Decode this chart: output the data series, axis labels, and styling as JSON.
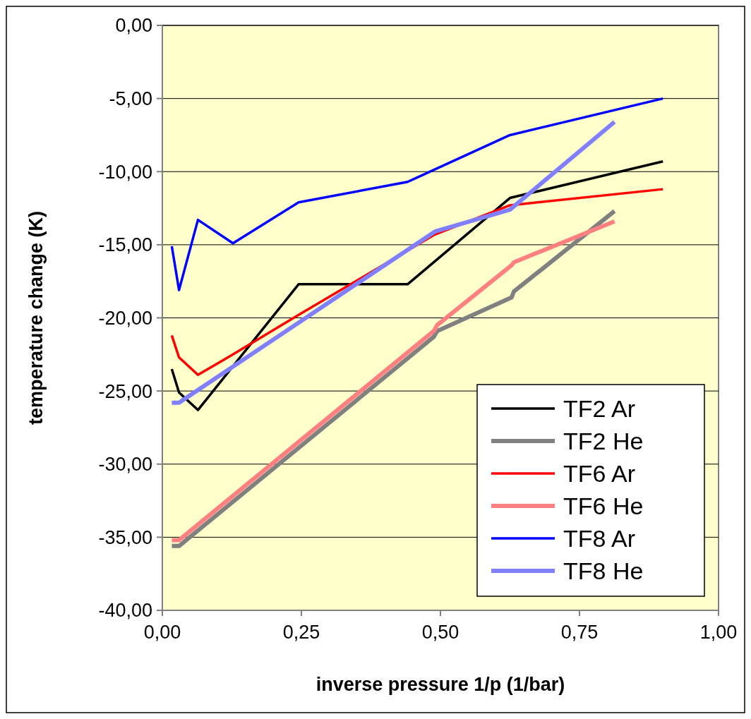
{
  "chart_data": {
    "type": "line",
    "xlabel": "inverse pressure 1/p (1/bar)",
    "ylabel": "temperature change (K)",
    "xlim": [
      0,
      1
    ],
    "ylim": [
      -40,
      0
    ],
    "xticks": [
      {
        "value": 0,
        "label": "0,00"
      },
      {
        "value": 0.25,
        "label": "0,25"
      },
      {
        "value": 0.5,
        "label": "0,50"
      },
      {
        "value": 0.75,
        "label": "0,75"
      },
      {
        "value": 1,
        "label": "1,00"
      }
    ],
    "yticks": [
      {
        "value": -40,
        "label": "-40,00"
      },
      {
        "value": -35,
        "label": "-35,00"
      },
      {
        "value": -30,
        "label": "-30,00"
      },
      {
        "value": -25,
        "label": "-25,00"
      },
      {
        "value": -20,
        "label": "-20,00"
      },
      {
        "value": -15,
        "label": "-15,00"
      },
      {
        "value": -10,
        "label": "-10,00"
      },
      {
        "value": -5,
        "label": "-5,00"
      },
      {
        "value": 0,
        "label": "0,00"
      }
    ],
    "grid": "y",
    "legend": "bottom right",
    "marker": "none",
    "line_style": "solid",
    "series": [
      {
        "name": "TF2 Ar",
        "color": "#000000",
        "x": [
          0.017,
          0.03,
          0.064,
          0.245,
          0.441,
          0.625,
          0.9
        ],
        "values": [
          -23.5,
          -25.1,
          -26.3,
          -17.7,
          -17.7,
          -11.8,
          -9.3
        ]
      },
      {
        "name": "TF2 He",
        "color": "#808080",
        "x": [
          0.017,
          0.03,
          0.488,
          0.494,
          0.628,
          0.632,
          0.813
        ],
        "values": [
          -35.6,
          -35.6,
          -21.3,
          -20.9,
          -18.6,
          -18.2,
          -12.7
        ]
      },
      {
        "name": "TF6 Ar",
        "color": "#ff0000",
        "x": [
          0.017,
          0.03,
          0.064,
          0.127,
          0.245,
          0.49,
          0.625,
          0.9
        ],
        "values": [
          -21.2,
          -22.7,
          -23.9,
          -22.5,
          -19.8,
          -14.3,
          -12.3,
          -11.2
        ]
      },
      {
        "name": "TF6 He",
        "color": "#ff8080",
        "x": [
          0.017,
          0.03,
          0.488,
          0.494,
          0.628,
          0.632,
          0.813
        ],
        "values": [
          -35.2,
          -35.2,
          -20.9,
          -20.5,
          -16.4,
          -16.2,
          -13.4
        ]
      },
      {
        "name": "TF8 Ar",
        "color": "#0000ff",
        "x": [
          0.017,
          0.03,
          0.064,
          0.127,
          0.245,
          0.441,
          0.625,
          0.9
        ],
        "values": [
          -15.1,
          -18.1,
          -13.3,
          -14.9,
          -12.1,
          -10.7,
          -7.5,
          -5.0
        ]
      },
      {
        "name": "TF8 He",
        "color": "#8080ff",
        "x": [
          0.017,
          0.03,
          0.49,
          0.625,
          0.813
        ],
        "values": [
          -25.8,
          -25.8,
          -14.1,
          -12.6,
          -6.6
        ]
      }
    ]
  }
}
